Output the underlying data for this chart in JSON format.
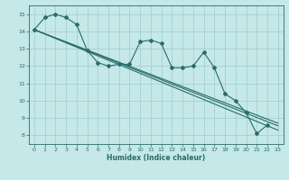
{
  "xlabel": "Humidex (Indice chaleur)",
  "ylabel": "",
  "background_color": "#c5e8e8",
  "grid_color": "#a0cccc",
  "line_color": "#2a6b6b",
  "xlim": [
    -0.5,
    23.5
  ],
  "ylim": [
    7.5,
    15.5
  ],
  "yticks": [
    8,
    9,
    10,
    11,
    12,
    13,
    14,
    15
  ],
  "xticks": [
    0,
    1,
    2,
    3,
    4,
    5,
    6,
    7,
    8,
    9,
    10,
    11,
    12,
    13,
    14,
    15,
    16,
    17,
    18,
    19,
    20,
    21,
    22,
    23
  ],
  "series1_x": [
    0,
    1,
    2,
    3,
    4,
    5,
    6,
    7,
    8,
    9,
    10,
    11,
    12,
    13,
    14,
    15,
    16,
    17,
    18,
    19,
    20,
    21,
    22
  ],
  "series1_y": [
    14.1,
    14.8,
    15.0,
    14.8,
    14.4,
    12.9,
    12.2,
    12.0,
    12.1,
    12.1,
    13.4,
    13.5,
    13.3,
    11.9,
    11.9,
    12.0,
    12.8,
    11.9,
    10.4,
    10.0,
    9.3,
    8.1,
    8.6
  ],
  "series2_x": [
    0,
    23
  ],
  "series2_y": [
    14.1,
    8.3
  ],
  "series3_x": [
    0,
    23
  ],
  "series3_y": [
    14.1,
    8.55
  ],
  "series4_x": [
    0,
    23
  ],
  "series4_y": [
    14.1,
    8.7
  ]
}
